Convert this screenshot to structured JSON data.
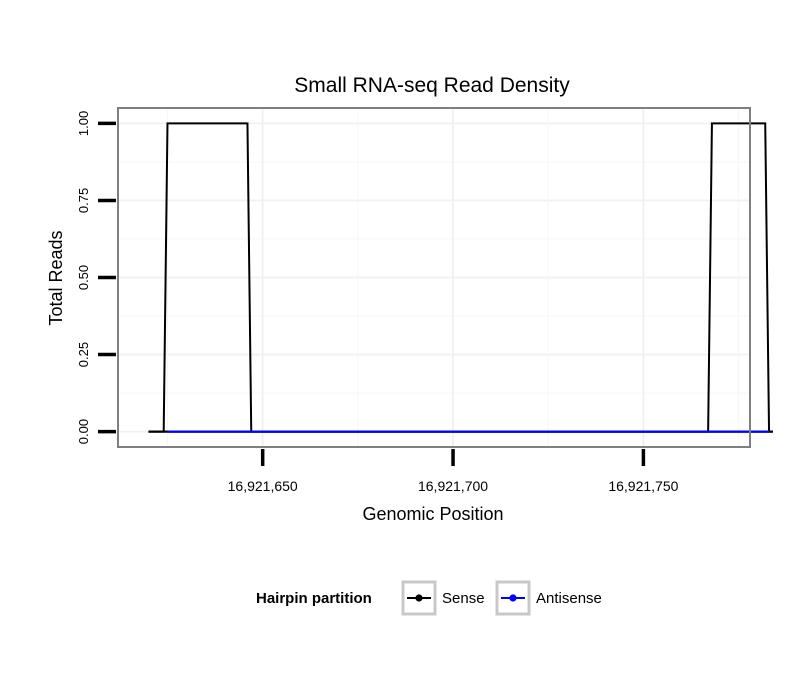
{
  "chart_data": {
    "type": "line",
    "title": "Small RNA-seq Read Density",
    "xlabel": "Genomic Position",
    "ylabel": "Total Reads",
    "xlim": [
      16921612,
      16921778
    ],
    "ylim": [
      -0.05,
      1.05
    ],
    "x_ticks": [
      {
        "value": 16921650,
        "label": "16,921,650"
      },
      {
        "value": 16921700,
        "label": "16,921,700"
      },
      {
        "value": 16921750,
        "label": "16,921,750"
      }
    ],
    "y_ticks": [
      {
        "value": 0,
        "label": "0.00"
      },
      {
        "value": 0.25,
        "label": "0.25"
      },
      {
        "value": 0.5,
        "label": "0.50"
      },
      {
        "value": 0.75,
        "label": "0.75"
      },
      {
        "value": 1,
        "label": "1.00"
      }
    ],
    "grid": true,
    "legend": {
      "title": "Hairpin partition",
      "position": "bottom"
    },
    "series": [
      {
        "name": "Sense",
        "color": "#000000",
        "x": [
          16921620,
          16921624,
          16921625,
          16921638,
          16921646,
          16921647,
          16921766,
          16921767,
          16921768,
          16921782,
          16921783,
          16921784
        ],
        "values": [
          0,
          0,
          1,
          1,
          1,
          0,
          0,
          0,
          1,
          1,
          0,
          0
        ]
      },
      {
        "name": "Antisense",
        "color": "#0000ff",
        "x": [
          16921625,
          16921647,
          16921768,
          16921783
        ],
        "values": [
          0,
          0,
          0,
          0
        ]
      }
    ]
  }
}
